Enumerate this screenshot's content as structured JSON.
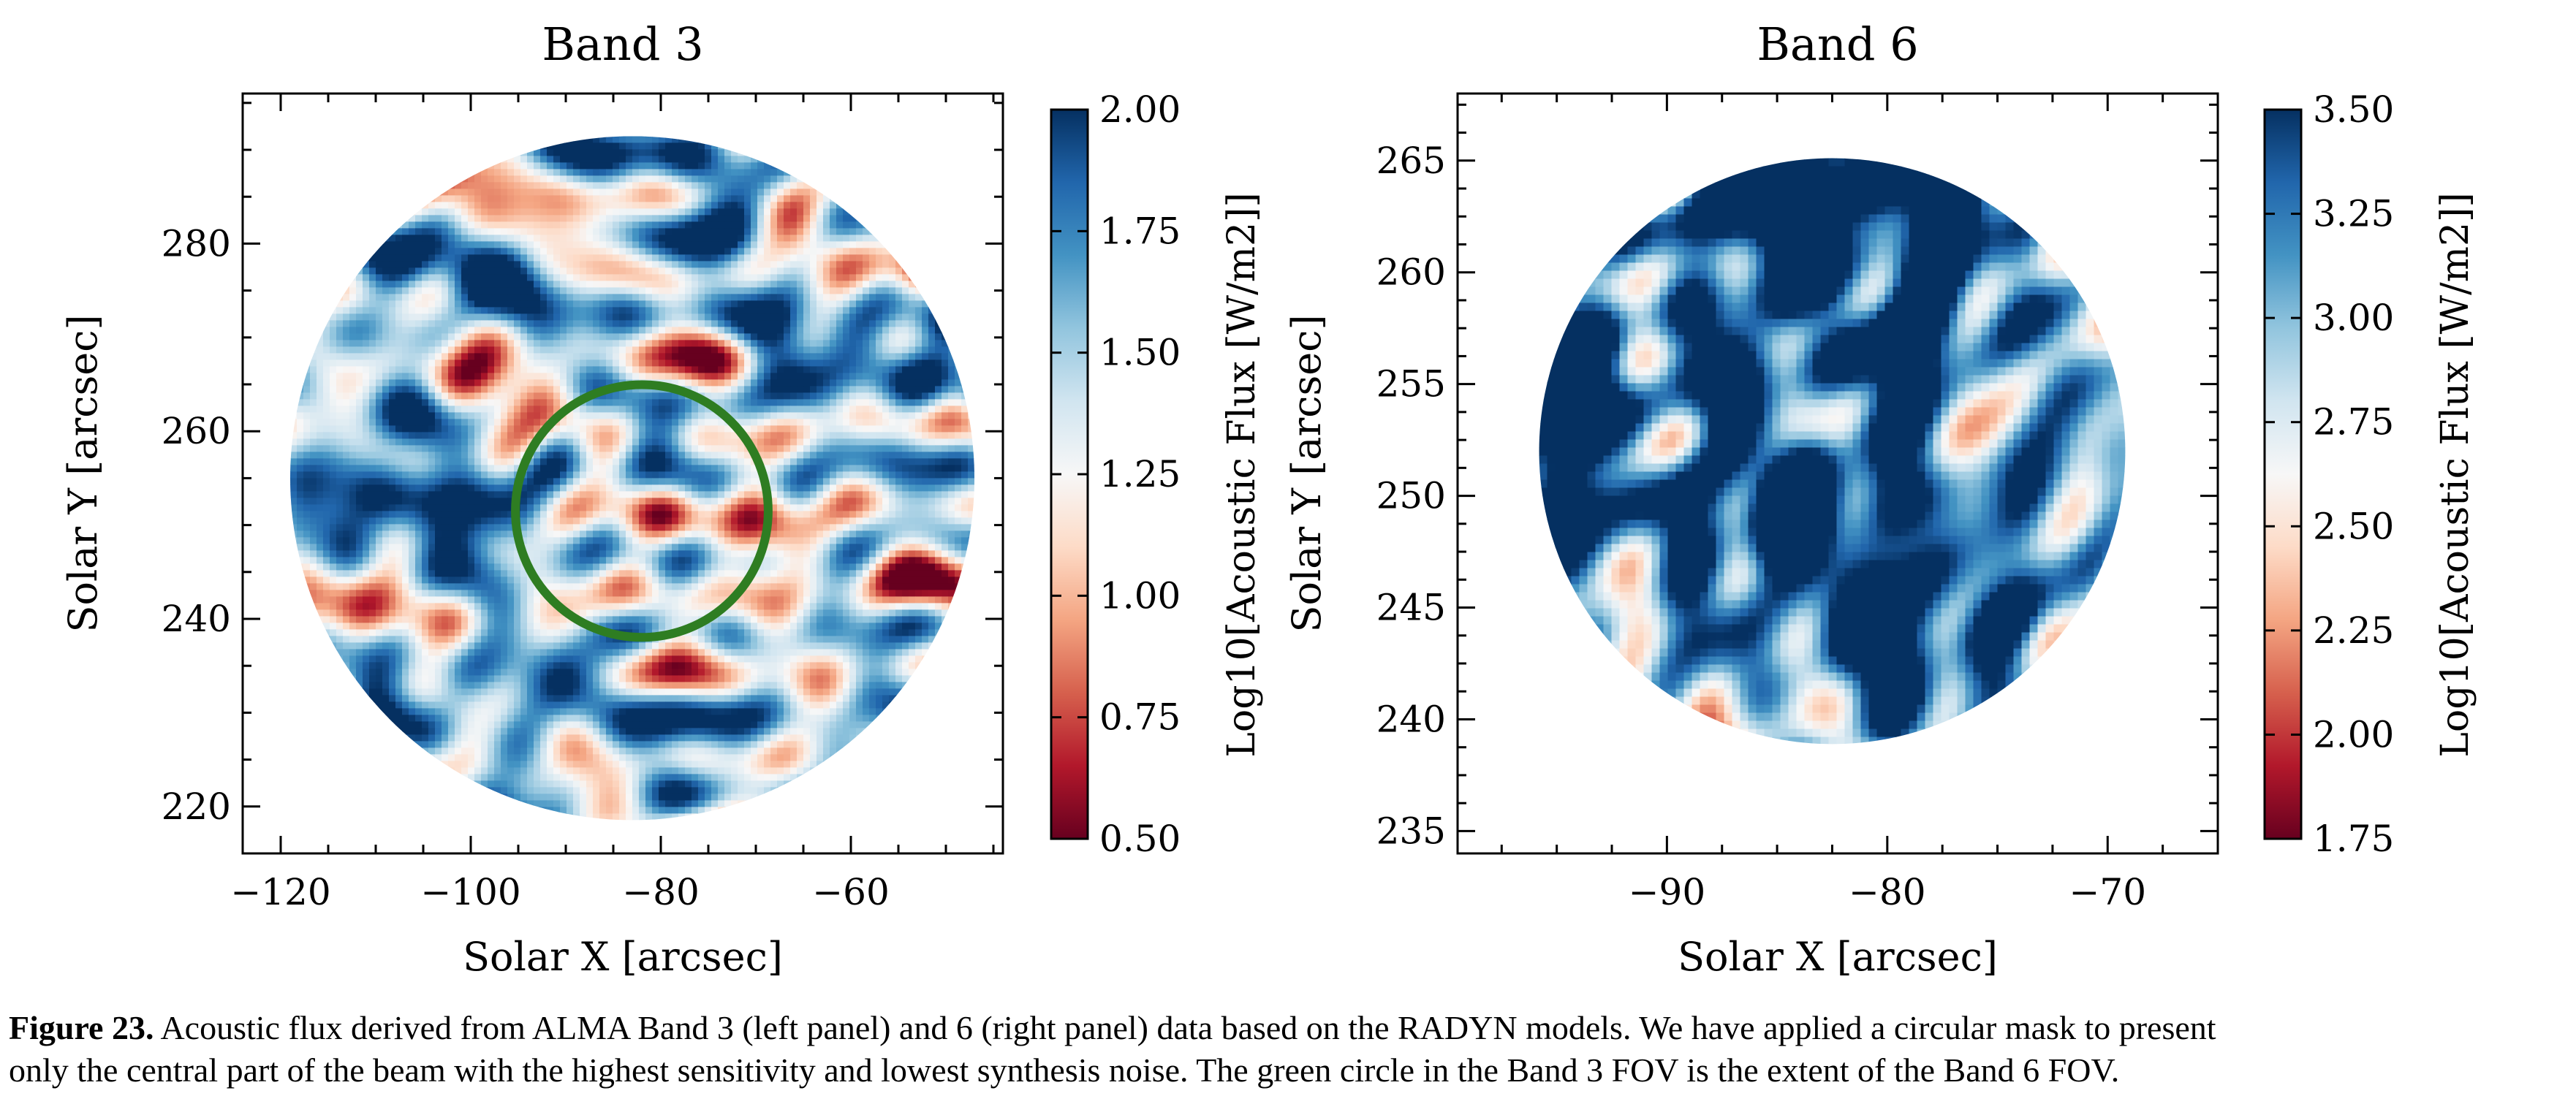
{
  "chart_data": [
    {
      "type": "heatmap",
      "title": "Band 3",
      "xlabel": "Solar X [arcsec]",
      "ylabel": "Solar Y [arcsec]",
      "xlim": [
        -124,
        -44
      ],
      "ylim": [
        215,
        296
      ],
      "xticks": [
        -120,
        -100,
        -80,
        -60
      ],
      "xtick_labels": [
        "−120",
        "−100",
        "−80",
        "−60"
      ],
      "yticks": [
        220,
        240,
        260,
        280
      ],
      "ytick_labels": [
        "220",
        "240",
        "260",
        "280"
      ],
      "mask_circle": {
        "cx": -83,
        "cy": 255,
        "r": 36
      },
      "overlay_circle": {
        "cx": -82,
        "cy": 251.5,
        "r": 13.3,
        "color": "#2e7d22"
      },
      "colorbar": {
        "label": "Log10[Acoustic Flux [W/m2]]",
        "min": 0.5,
        "max": 2.0,
        "ticks": [
          0.5,
          0.75,
          1.0,
          1.25,
          1.5,
          1.75,
          2.0
        ],
        "tick_labels": [
          "0.50",
          "0.75",
          "1.00",
          "1.25",
          "1.50",
          "1.75",
          "2.00"
        ],
        "cmap": "RdBu"
      },
      "grid": false
    },
    {
      "type": "heatmap",
      "title": "Band 6",
      "xlabel": "Solar X [arcsec]",
      "ylabel": "Solar Y [arcsec]",
      "xlim": [
        -99.5,
        -65
      ],
      "ylim": [
        234,
        268
      ],
      "xticks": [
        -90,
        -80,
        -70
      ],
      "xtick_labels": [
        "−90",
        "−80",
        "−70"
      ],
      "yticks": [
        235,
        240,
        245,
        250,
        255,
        260,
        265
      ],
      "ytick_labels": [
        "235",
        "240",
        "245",
        "250",
        "255",
        "260",
        "265"
      ],
      "mask_circle": {
        "cx": -82.5,
        "cy": 252,
        "r": 13.3
      },
      "colorbar": {
        "label": "Log10[Acoustic Flux [W/m2]]",
        "min": 1.75,
        "max": 3.5,
        "ticks": [
          1.75,
          2.0,
          2.25,
          2.5,
          2.75,
          3.0,
          3.25,
          3.5
        ],
        "tick_labels": [
          "1.75",
          "2.00",
          "2.25",
          "2.50",
          "2.75",
          "3.00",
          "3.25",
          "3.50"
        ],
        "cmap": "RdBu"
      },
      "grid": false
    }
  ],
  "caption": {
    "lead": "Figure 23.",
    "line1": "Acoustic flux derived from ALMA Band 3 (left panel) and 6 (right panel) data based on the RADYN models. We have applied a circular mask to present",
    "line2": "only the central part of the beam with the highest sensitivity and lowest synthesis noise. The green circle in the Band 3 FOV is the extent of the Band 6 FOV."
  },
  "colors": {
    "overlay": "#2e7d22",
    "cmap_low": "#67001f",
    "cmap_mid": "#f7f7f7",
    "cmap_high": "#053061"
  }
}
